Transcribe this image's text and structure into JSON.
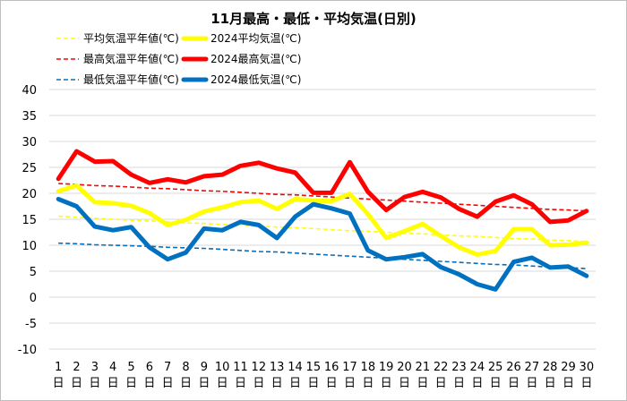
{
  "chart_data": {
    "type": "line",
    "title": "11月最高・最低・平均気温(日別)",
    "xlabel": "",
    "ylabel": "",
    "ylim": [
      -10,
      40
    ],
    "ytick_step": 5,
    "x": [
      1,
      2,
      3,
      4,
      5,
      6,
      7,
      8,
      9,
      10,
      11,
      12,
      13,
      14,
      15,
      16,
      17,
      18,
      19,
      20,
      21,
      22,
      23,
      24,
      25,
      26,
      27,
      28,
      29,
      30
    ],
    "x_day_label": "日",
    "grid": "horizontal",
    "legend_position": "top-left",
    "series": [
      {
        "name": "平均気温平年値(℃)",
        "color": "#ffff00",
        "style": "dashed",
        "width": 1.6,
        "values": [
          15.6,
          15.4,
          15.2,
          15.0,
          14.8,
          14.7,
          14.5,
          14.3,
          14.2,
          14.0,
          13.9,
          13.7,
          13.5,
          13.4,
          13.2,
          13.0,
          12.8,
          12.7,
          12.5,
          12.3,
          12.2,
          12.0,
          11.8,
          11.7,
          11.5,
          11.3,
          11.2,
          11.0,
          10.9,
          10.7
        ]
      },
      {
        "name": "2024平均気温(℃)",
        "color": "#ffff00",
        "style": "solid",
        "width": 5,
        "values": [
          20.4,
          21.5,
          18.3,
          18.1,
          17.6,
          16.2,
          13.9,
          14.9,
          16.5,
          17.3,
          18.3,
          18.6,
          17.0,
          18.9,
          18.6,
          18.5,
          19.9,
          16.0,
          11.4,
          12.7,
          14.1,
          11.8,
          9.6,
          8.2,
          8.9,
          13.1,
          13.1,
          10.0,
          10.1,
          10.5
        ]
      },
      {
        "name": "最高気温平年値(℃)",
        "color": "#ff0000",
        "style": "dashed",
        "width": 1.6,
        "values": [
          21.9,
          21.7,
          21.5,
          21.4,
          21.2,
          21.0,
          20.9,
          20.7,
          20.5,
          20.4,
          20.2,
          20.0,
          19.8,
          19.7,
          19.5,
          19.3,
          19.1,
          18.9,
          18.7,
          18.5,
          18.3,
          18.1,
          17.9,
          17.7,
          17.5,
          17.3,
          17.1,
          16.9,
          16.8,
          16.6
        ]
      },
      {
        "name": "2024最高気温(℃)",
        "color": "#ff0000",
        "style": "solid",
        "width": 5,
        "values": [
          22.8,
          28.1,
          26.1,
          26.2,
          23.6,
          22.0,
          22.7,
          22.1,
          23.3,
          23.6,
          25.3,
          25.9,
          24.8,
          24.0,
          20.1,
          20.1,
          26.0,
          20.3,
          16.8,
          19.3,
          20.3,
          19.2,
          17.0,
          15.5,
          18.4,
          19.6,
          17.9,
          14.5,
          14.8,
          16.6
        ]
      },
      {
        "name": "最低気温平年値(℃)",
        "color": "#0070c0",
        "style": "dashed",
        "width": 1.6,
        "values": [
          10.4,
          10.3,
          10.1,
          10.0,
          9.9,
          9.8,
          9.6,
          9.5,
          9.4,
          9.2,
          9.0,
          8.8,
          8.7,
          8.5,
          8.3,
          8.1,
          7.9,
          7.7,
          7.5,
          7.3,
          7.1,
          6.9,
          6.7,
          6.5,
          6.3,
          6.2,
          6.0,
          5.8,
          5.7,
          5.5
        ]
      },
      {
        "name": "2024最低気温(℃)",
        "color": "#0070c0",
        "style": "solid",
        "width": 5,
        "values": [
          18.9,
          17.5,
          13.6,
          12.9,
          13.5,
          9.6,
          7.3,
          8.6,
          13.2,
          12.9,
          14.5,
          13.9,
          11.4,
          15.5,
          17.9,
          17.1,
          16.1,
          9.0,
          7.3,
          7.7,
          8.3,
          5.8,
          4.4,
          2.5,
          1.5,
          6.8,
          7.6,
          5.7,
          5.9,
          4.1
        ]
      }
    ]
  }
}
